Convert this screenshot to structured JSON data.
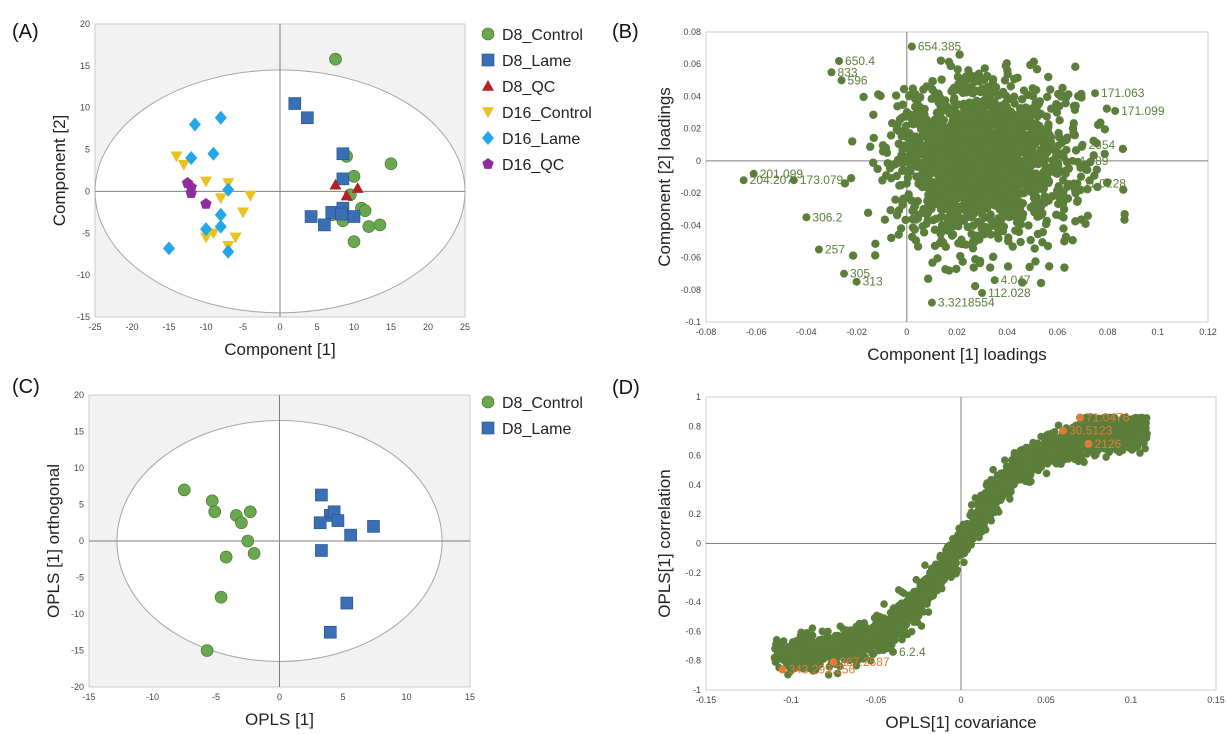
{
  "panels": [
    {
      "id": "A",
      "label": "(A)",
      "chart_data": {
        "type": "scatter",
        "xlabel": "Component [1]",
        "ylabel": "Component [2]",
        "xlim": [
          -25,
          25
        ],
        "ylim": [
          -15,
          20
        ],
        "xticks": [
          -25,
          -20,
          -15,
          -10,
          -5,
          0,
          5,
          10,
          15,
          20,
          25
        ],
        "yticks": [
          -15,
          -10,
          -5,
          0,
          5,
          10,
          15,
          20
        ],
        "grid": false,
        "ellipse": {
          "cx": 0,
          "cy": 0,
          "rx": 25,
          "ry": 14.5
        },
        "legend": "right",
        "series": [
          {
            "name": "D8_Control",
            "marker": "circle",
            "color": "#6aa84f",
            "points": [
              [
                7.5,
                15.8
              ],
              [
                15,
                3.3
              ],
              [
                9,
                4.2
              ],
              [
                10,
                1.8
              ],
              [
                9.5,
                -0.4
              ],
              [
                11,
                -2.0
              ],
              [
                11.5,
                -2.3
              ],
              [
                8.5,
                -3.5
              ],
              [
                12,
                -4.2
              ],
              [
                13.5,
                -4.0
              ],
              [
                10,
                -6.0
              ],
              [
                7,
                -2.8
              ]
            ]
          },
          {
            "name": "D8_Lame",
            "marker": "square",
            "color": "#3a6eb5",
            "points": [
              [
                2,
                10.5
              ],
              [
                3.7,
                8.8
              ],
              [
                8.5,
                4.5
              ],
              [
                8.5,
                1.5
              ],
              [
                4.2,
                -3.0
              ],
              [
                6,
                -4.0
              ],
              [
                7,
                -2.5
              ],
              [
                8.5,
                -2.0
              ],
              [
                10,
                -3.0
              ],
              [
                8.3,
                -2.7
              ]
            ]
          },
          {
            "name": "D8_QC",
            "marker": "triangle",
            "color": "#b22222",
            "points": [
              [
                7.5,
                0.8
              ],
              [
                9,
                -0.5
              ],
              [
                10.5,
                0.4
              ]
            ]
          },
          {
            "name": "D16_Control",
            "marker": "triangle-down",
            "color": "#e8c31e",
            "points": [
              [
                -14,
                4.2
              ],
              [
                -13,
                3.2
              ],
              [
                -10,
                1.2
              ],
              [
                -7,
                1.0
              ],
              [
                -4,
                -0.5
              ],
              [
                -8,
                -0.8
              ],
              [
                -5,
                -2.5
              ],
              [
                -10,
                -5.5
              ],
              [
                -9,
                -5.0
              ],
              [
                -7,
                -6.5
              ],
              [
                -6,
                -5.5
              ]
            ]
          },
          {
            "name": "D16_Lame",
            "marker": "diamond",
            "color": "#22a7e8",
            "points": [
              [
                -11.5,
                8.0
              ],
              [
                -8,
                8.8
              ],
              [
                -12,
                4.0
              ],
              [
                -9,
                4.5
              ],
              [
                -7,
                0.2
              ],
              [
                -8,
                -2.8
              ],
              [
                -10,
                -4.5
              ],
              [
                -8,
                -4.2
              ],
              [
                -15,
                -6.8
              ],
              [
                -7,
                -7.2
              ]
            ]
          },
          {
            "name": "D16_QC",
            "marker": "pentagon",
            "color": "#8e2e9e",
            "points": [
              [
                -12.5,
                1.0
              ],
              [
                -12,
                0.5
              ],
              [
                -10,
                -1.5
              ],
              [
                -12,
                -0.2
              ]
            ]
          }
        ]
      }
    },
    {
      "id": "B",
      "label": "(B)",
      "chart_data": {
        "type": "scatter",
        "xlabel": "Component [1] loadings",
        "ylabel": "Component [2] loadings",
        "xlim": [
          -0.08,
          0.12
        ],
        "ylim": [
          -0.1,
          0.08
        ],
        "xticks": [
          -0.08,
          -0.06,
          -0.04,
          -0.02,
          0,
          0.02,
          0.04,
          0.06,
          0.08,
          0.1,
          0.12
        ],
        "yticks": [
          -0.1,
          -0.08,
          -0.06,
          -0.04,
          -0.02,
          0,
          0.02,
          0.04,
          0.06,
          0.08
        ],
        "grid": false,
        "cloud": {
          "cx": 0.03,
          "cy": 0,
          "sx": 0.028,
          "sy": 0.032,
          "n": 1800,
          "color": "#5b7f3a"
        },
        "labeled_points": [
          {
            "x": 0.002,
            "y": 0.071,
            "label": "654.385"
          },
          {
            "x": -0.027,
            "y": 0.062,
            "label": "650.4"
          },
          {
            "x": -0.03,
            "y": 0.055,
            "label": "833"
          },
          {
            "x": -0.026,
            "y": 0.05,
            "label": "596"
          },
          {
            "x": 0.075,
            "y": 0.042,
            "label": "171.063"
          },
          {
            "x": 0.083,
            "y": 0.031,
            "label": "171.099"
          },
          {
            "x": 0.07,
            "y": 0.01,
            "label": "2654"
          },
          {
            "x": 0.066,
            "y": 0.0,
            "label": "4.989"
          },
          {
            "x": -0.061,
            "y": -0.008,
            "label": "201.099"
          },
          {
            "x": -0.065,
            "y": -0.012,
            "label": "204.207"
          },
          {
            "x": -0.045,
            "y": -0.012,
            "label": "173.079"
          },
          {
            "x": 0.068,
            "y": -0.014,
            "label": "11.0228"
          },
          {
            "x": -0.04,
            "y": -0.035,
            "label": "306.2"
          },
          {
            "x": -0.035,
            "y": -0.055,
            "label": "257"
          },
          {
            "x": -0.025,
            "y": -0.07,
            "label": "305"
          },
          {
            "x": -0.02,
            "y": -0.075,
            "label": "313"
          },
          {
            "x": 0.035,
            "y": -0.074,
            "label": "4.047"
          },
          {
            "x": 0.03,
            "y": -0.082,
            "label": "112.028"
          },
          {
            "x": 0.01,
            "y": -0.088,
            "label": "3.3218554"
          }
        ]
      }
    },
    {
      "id": "C",
      "label": "(C)",
      "chart_data": {
        "type": "scatter",
        "xlabel": "OPLS [1]",
        "ylabel": "OPLS [1] orthogonal",
        "xlim": [
          -15,
          15
        ],
        "ylim": [
          -20,
          20
        ],
        "xticks": [
          -15,
          -10,
          -5,
          0,
          5,
          10,
          15
        ],
        "yticks": [
          -20,
          -15,
          -10,
          -5,
          0,
          5,
          10,
          15,
          20
        ],
        "grid": false,
        "ellipse": {
          "cx": 0,
          "cy": 0,
          "rx": 12.8,
          "ry": 16.5
        },
        "legend": "right",
        "series": [
          {
            "name": "D8_Control",
            "marker": "circle",
            "color": "#6aa84f",
            "points": [
              [
                -7.5,
                7.0
              ],
              [
                -5.3,
                5.5
              ],
              [
                -5.1,
                4.0
              ],
              [
                -3.4,
                3.5
              ],
              [
                -2.3,
                4.0
              ],
              [
                -3.0,
                2.5
              ],
              [
                -2.5,
                0
              ],
              [
                -2.0,
                -1.7
              ],
              [
                -4.2,
                -2.2
              ],
              [
                -4.6,
                -7.7
              ],
              [
                -5.7,
                -15.0
              ]
            ]
          },
          {
            "name": "D8_Lame",
            "marker": "square",
            "color": "#3a6eb5",
            "points": [
              [
                3.3,
                6.3
              ],
              [
                4.0,
                3.5
              ],
              [
                4.3,
                4.0
              ],
              [
                4.6,
                2.8
              ],
              [
                3.2,
                2.5
              ],
              [
                5.6,
                0.8
              ],
              [
                7.4,
                2.0
              ],
              [
                3.3,
                -1.3
              ],
              [
                5.3,
                -8.5
              ],
              [
                4.0,
                -12.5
              ]
            ]
          }
        ]
      }
    },
    {
      "id": "D",
      "label": "(D)",
      "chart_data": {
        "type": "scatter",
        "xlabel": "OPLS[1] covariance",
        "ylabel": "OPLS[1] correlation",
        "xlim": [
          -0.15,
          0.15
        ],
        "ylim": [
          -1,
          1
        ],
        "xticks": [
          -0.15,
          -0.1,
          -0.05,
          0,
          0.05,
          0.1,
          0.15
        ],
        "yticks": [
          -1,
          -0.8,
          -0.6,
          -0.4,
          -0.2,
          0,
          0.2,
          0.4,
          0.6,
          0.8,
          1
        ],
        "grid": false,
        "cloud": {
          "color": "#5b7f3a",
          "n": 2200
        },
        "highlight_color": "#e07b39",
        "labeled_points": [
          {
            "x": 0.07,
            "y": 0.86,
            "label": "71.0476",
            "color": "#e07b39"
          },
          {
            "x": 0.06,
            "y": 0.77,
            "label": "30.5123",
            "color": "#e07b39"
          },
          {
            "x": 0.075,
            "y": 0.68,
            "label": "2126",
            "color": "#e07b39"
          },
          {
            "x": -0.105,
            "y": -0.86,
            "label": "343.293.256",
            "color": "#e07b39"
          },
          {
            "x": -0.075,
            "y": -0.81,
            "label": "367.2587",
            "color": "#e07b39"
          },
          {
            "x": -0.1,
            "y": -0.75,
            "label": "217.016",
            "color": "#5b7f3a"
          },
          {
            "x": -0.04,
            "y": -0.74,
            "label": "6.2.4",
            "color": "#5b7f3a"
          }
        ]
      }
    }
  ]
}
